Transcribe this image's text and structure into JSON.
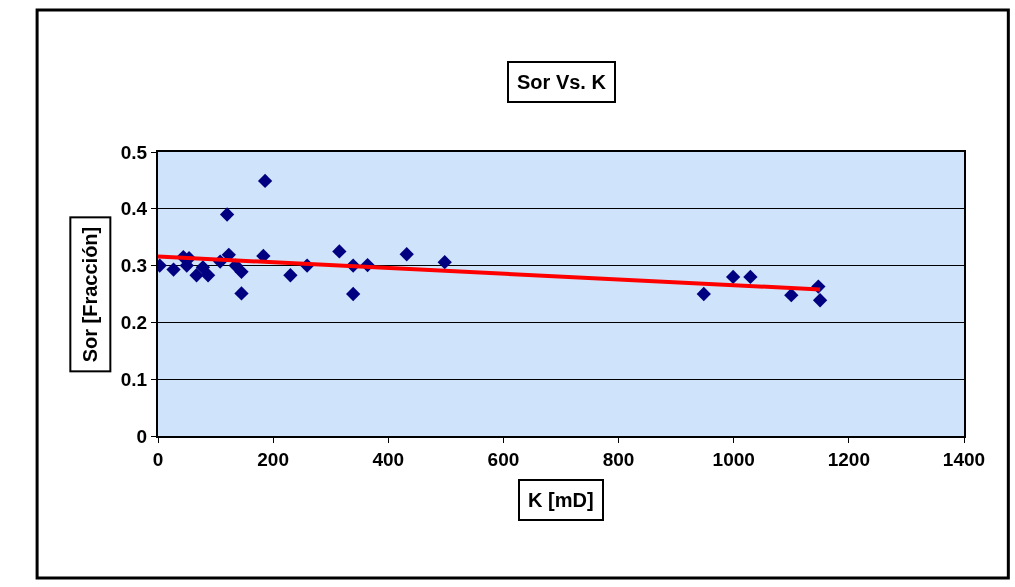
{
  "chart_data": {
    "type": "scatter",
    "title": "Sor Vs. K",
    "xlabel": "K [mD]",
    "ylabel": "Sor [Fracción]",
    "xlim": [
      0,
      1400
    ],
    "xticks": [
      0,
      200,
      400,
      600,
      800,
      1000,
      1200,
      1400
    ],
    "ylim": [
      0,
      0.5
    ],
    "yticks": [
      0,
      0.1,
      0.2,
      0.3,
      0.4,
      0.5
    ],
    "grid": "y",
    "series": [
      {
        "marker": "diamond",
        "color": "#000080",
        "x": [
          3,
          27,
          44,
          54,
          50,
          67,
          78,
          87,
          108,
          120,
          123,
          135,
          145,
          145,
          186,
          183,
          230,
          259,
          315,
          339,
          339,
          364,
          432,
          498,
          948,
          999,
          1029,
          1100,
          1147,
          1150
        ],
        "values": [
          0.3,
          0.293,
          0.315,
          0.313,
          0.3,
          0.283,
          0.297,
          0.283,
          0.307,
          0.39,
          0.319,
          0.3,
          0.289,
          0.251,
          0.449,
          0.317,
          0.283,
          0.3,
          0.325,
          0.3,
          0.25,
          0.301,
          0.32,
          0.306,
          0.25,
          0.28,
          0.28,
          0.248,
          0.263,
          0.239
        ]
      },
      {
        "type": "line",
        "color": "#ff0000",
        "x": [
          0,
          1150
        ],
        "values": [
          0.316,
          0.258
        ]
      }
    ]
  }
}
